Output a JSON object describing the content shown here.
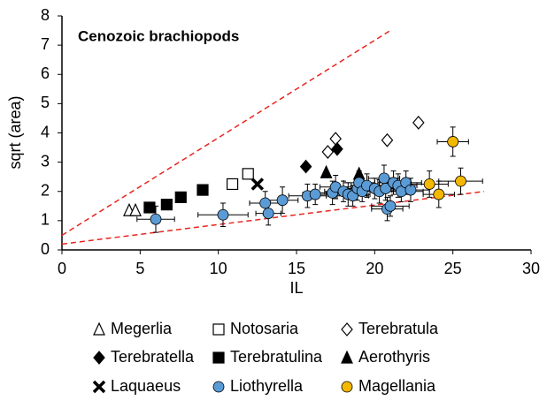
{
  "chart_data": {
    "type": "scatter",
    "title": "Cenozoic brachiopods",
    "xlabel": "IL",
    "ylabel": "sqrt (area)",
    "xlim": [
      0,
      30
    ],
    "xticks": [
      0,
      5,
      10,
      15,
      20,
      25,
      30
    ],
    "ylim": [
      0,
      8
    ],
    "yticks": [
      0,
      1,
      2,
      3,
      4,
      5,
      6,
      7,
      8
    ],
    "grid": false,
    "legend": "bottom",
    "lines": [
      {
        "x": [
          0,
          21
        ],
        "y": [
          0.5,
          7.5
        ],
        "color": "#e8251f",
        "style": "dashed"
      },
      {
        "x": [
          0,
          27
        ],
        "y": [
          0.2,
          2.0
        ],
        "color": "#e8251f",
        "style": "dashed"
      }
    ],
    "series": [
      {
        "name": "Megerlia",
        "marker": "triangle-open",
        "color": "#000000",
        "x": [
          4.3,
          4.7
        ],
        "y": [
          1.35,
          1.35
        ]
      },
      {
        "name": "Notosaria",
        "marker": "square-open",
        "color": "#000000",
        "x": [
          10.9,
          11.9
        ],
        "y": [
          2.25,
          2.6
        ]
      },
      {
        "name": "Terebratula",
        "marker": "diamond-open",
        "color": "#000000",
        "x": [
          17.0,
          17.5,
          20.8,
          22.8
        ],
        "y": [
          3.35,
          3.8,
          3.75,
          4.35
        ]
      },
      {
        "name": "Terebratella",
        "marker": "diamond",
        "color": "#000000",
        "x": [
          15.6,
          17.6
        ],
        "y": [
          2.85,
          3.45
        ]
      },
      {
        "name": "Terebratulina",
        "marker": "square",
        "color": "#000000",
        "x": [
          5.6,
          6.7,
          7.6,
          9.0
        ],
        "y": [
          1.45,
          1.55,
          1.8,
          2.05
        ]
      },
      {
        "name": "Aerothyris",
        "marker": "triangle",
        "color": "#000000",
        "x": [
          16.9,
          19.0
        ],
        "y": [
          2.65,
          2.6
        ]
      },
      {
        "name": "Laquaeus",
        "marker": "x",
        "color": "#000000",
        "x": [
          12.5
        ],
        "y": [
          2.25
        ]
      },
      {
        "name": "Liothyrella",
        "marker": "circle",
        "color": "#5b9bd5",
        "x": [
          6.0,
          10.3,
          13.0,
          13.2,
          14.1,
          15.7,
          16.2,
          17.3,
          17.5,
          18.0,
          18.3,
          18.6,
          18.9,
          19.0,
          19.2,
          19.5,
          20.0,
          20.3,
          20.6,
          20.7,
          20.8,
          21.0,
          21.2,
          21.5,
          21.7,
          22.0,
          22.3
        ],
        "y": [
          1.05,
          1.2,
          1.6,
          1.25,
          1.7,
          1.85,
          1.9,
          1.95,
          2.15,
          2.0,
          1.9,
          1.85,
          2.1,
          2.3,
          2.0,
          2.2,
          2.1,
          2.0,
          2.45,
          2.1,
          1.4,
          1.5,
          2.3,
          2.2,
          2.0,
          2.3,
          2.05
        ],
        "xerr": [
          1.2,
          1.6,
          1.0,
          0.8,
          1.0,
          1.2,
          0.8,
          1.0,
          1.0,
          1.2,
          1.4,
          1.0,
          1.2,
          1.0,
          1.4,
          1.0,
          1.2,
          1.4,
          1.0,
          1.2,
          1.0,
          1.2,
          1.0,
          1.2,
          1.4,
          1.0,
          1.2
        ],
        "yerr": [
          0.45,
          0.4,
          0.4,
          0.4,
          0.45,
          0.4,
          0.35,
          0.4,
          0.4,
          0.35,
          0.4,
          0.35,
          0.4,
          0.4,
          0.35,
          0.4,
          0.35,
          0.4,
          0.45,
          0.4,
          0.4,
          0.35,
          0.4,
          0.4,
          0.35,
          0.4,
          0.4
        ]
      },
      {
        "name": "Magellania",
        "marker": "circle",
        "color": "#f5b800",
        "x": [
          23.5,
          24.1,
          25.0,
          25.5
        ],
        "y": [
          2.25,
          1.9,
          3.7,
          2.35
        ],
        "xerr": [
          1.2,
          1.0,
          1.0,
          1.4
        ],
        "yerr": [
          0.45,
          0.45,
          0.5,
          0.45
        ]
      }
    ]
  }
}
